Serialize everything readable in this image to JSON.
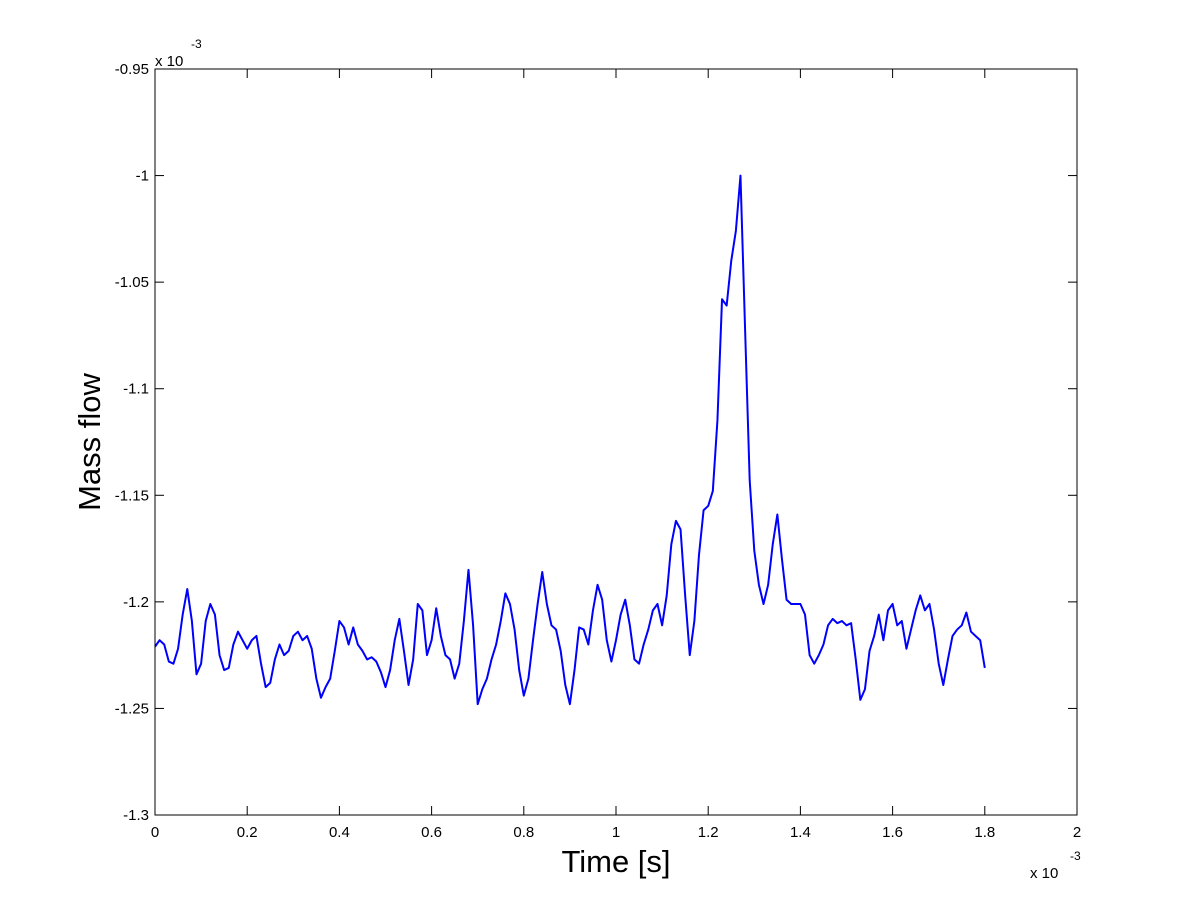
{
  "chart_data": {
    "type": "line",
    "xlabel": "Time [s]",
    "ylabel": "Mass flow",
    "x_multiplier": {
      "base": "x 10",
      "exponent": "-3"
    },
    "y_multiplier": {
      "base": "x 10",
      "exponent": "-3"
    },
    "color": "#0000ff",
    "xlim": [
      0,
      2
    ],
    "ylim": [
      -1.3,
      -0.95
    ],
    "xticks": [
      0,
      0.2,
      0.4,
      0.6,
      0.8,
      1,
      1.2,
      1.4,
      1.6,
      1.8,
      2
    ],
    "yticks": [
      -1.3,
      -1.25,
      -1.2,
      -1.15,
      -1.1,
      -1.05,
      -1,
      -0.95
    ],
    "grid": false,
    "x": [
      0,
      0.01,
      0.02,
      0.03,
      0.04,
      0.05,
      0.06,
      0.07,
      0.08,
      0.09,
      0.1,
      0.11,
      0.12,
      0.13,
      0.14,
      0.15,
      0.16,
      0.17,
      0.18,
      0.19,
      0.2,
      0.21,
      0.22,
      0.23,
      0.24,
      0.25,
      0.26,
      0.27,
      0.28,
      0.29,
      0.3,
      0.31,
      0.32,
      0.33,
      0.34,
      0.35,
      0.36,
      0.37,
      0.38,
      0.39,
      0.4,
      0.41,
      0.42,
      0.43,
      0.44,
      0.45,
      0.46,
      0.47,
      0.48,
      0.49,
      0.5,
      0.51,
      0.52,
      0.53,
      0.54,
      0.55,
      0.56,
      0.57,
      0.58,
      0.59,
      0.6,
      0.61,
      0.62,
      0.63,
      0.64,
      0.65,
      0.66,
      0.67,
      0.68,
      0.69,
      0.7,
      0.71,
      0.72,
      0.73,
      0.74,
      0.75,
      0.76,
      0.77,
      0.78,
      0.79,
      0.8,
      0.81,
      0.82,
      0.83,
      0.84,
      0.85,
      0.86,
      0.87,
      0.88,
      0.89,
      0.9,
      0.91,
      0.92,
      0.93,
      0.94,
      0.95,
      0.96,
      0.97,
      0.98,
      0.99,
      1,
      1.01,
      1.02,
      1.03,
      1.04,
      1.05,
      1.06,
      1.07,
      1.08,
      1.09,
      1.1,
      1.11,
      1.12,
      1.13,
      1.14,
      1.15,
      1.16,
      1.17,
      1.18,
      1.19,
      1.2,
      1.21,
      1.22,
      1.23,
      1.24,
      1.25,
      1.26,
      1.27,
      1.28,
      1.29,
      1.3,
      1.31,
      1.32,
      1.33,
      1.34,
      1.35,
      1.36,
      1.37,
      1.38,
      1.39,
      1.4,
      1.41,
      1.42,
      1.43,
      1.44,
      1.45,
      1.46,
      1.47,
      1.48,
      1.49,
      1.5,
      1.51,
      1.52,
      1.53,
      1.54,
      1.55,
      1.56,
      1.57,
      1.58,
      1.59,
      1.6,
      1.61,
      1.62,
      1.63,
      1.64,
      1.65,
      1.66,
      1.67,
      1.68,
      1.69,
      1.7,
      1.71,
      1.72,
      1.73,
      1.74,
      1.75,
      1.76,
      1.77,
      1.78,
      1.79,
      1.8
    ],
    "values": [
      -1.221,
      -1.218,
      -1.22,
      -1.228,
      -1.229,
      -1.222,
      -1.206,
      -1.194,
      -1.209,
      -1.234,
      -1.229,
      -1.209,
      -1.201,
      -1.206,
      -1.225,
      -1.232,
      -1.231,
      -1.22,
      -1.214,
      -1.218,
      -1.222,
      -1.218,
      -1.216,
      -1.229,
      -1.24,
      -1.238,
      -1.227,
      -1.22,
      -1.225,
      -1.223,
      -1.216,
      -1.214,
      -1.218,
      -1.216,
      -1.222,
      -1.236,
      -1.245,
      -1.24,
      -1.236,
      -1.223,
      -1.209,
      -1.212,
      -1.22,
      -1.212,
      -1.22,
      -1.223,
      -1.227,
      -1.226,
      -1.228,
      -1.233,
      -1.24,
      -1.232,
      -1.218,
      -1.208,
      -1.223,
      -1.239,
      -1.227,
      -1.201,
      -1.204,
      -1.225,
      -1.218,
      -1.203,
      -1.216,
      -1.225,
      -1.227,
      -1.236,
      -1.229,
      -1.209,
      -1.185,
      -1.211,
      -1.248,
      -1.241,
      -1.236,
      -1.227,
      -1.22,
      -1.209,
      -1.196,
      -1.201,
      -1.213,
      -1.232,
      -1.244,
      -1.236,
      -1.218,
      -1.201,
      -1.186,
      -1.201,
      -1.211,
      -1.213,
      -1.223,
      -1.239,
      -1.248,
      -1.232,
      -1.212,
      -1.213,
      -1.22,
      -1.204,
      -1.192,
      -1.199,
      -1.218,
      -1.228,
      -1.218,
      -1.206,
      -1.199,
      -1.211,
      -1.227,
      -1.229,
      -1.22,
      -1.213,
      -1.204,
      -1.201,
      -1.211,
      -1.197,
      -1.173,
      -1.162,
      -1.166,
      -1.197,
      -1.225,
      -1.209,
      -1.178,
      -1.157,
      -1.155,
      -1.148,
      -1.115,
      -1.058,
      -1.061,
      -1.04,
      -1.026,
      -1.0,
      -1.072,
      -1.143,
      -1.176,
      -1.192,
      -1.201,
      -1.192,
      -1.173,
      -1.159,
      -1.18,
      -1.199,
      -1.201,
      -1.201,
      -1.201,
      -1.206,
      -1.225,
      -1.229,
      -1.225,
      -1.22,
      -1.211,
      -1.208,
      -1.21,
      -1.209,
      -1.211,
      -1.21,
      -1.227,
      -1.246,
      -1.241,
      -1.223,
      -1.216,
      -1.206,
      -1.218,
      -1.204,
      -1.201,
      -1.211,
      -1.209,
      -1.222,
      -1.213,
      -1.204,
      -1.197,
      -1.204,
      -1.201,
      -1.213,
      -1.229,
      -1.239,
      -1.227,
      -1.216,
      -1.213,
      -1.211,
      -1.205,
      -1.214,
      -1.216,
      -1.218,
      -1.231
    ]
  }
}
